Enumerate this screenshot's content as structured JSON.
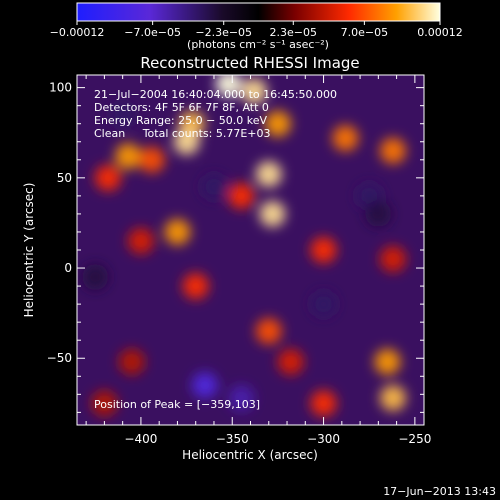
{
  "chart_data": {
    "type": "heatmap",
    "title": "Reconstructed RHESSI Image",
    "xlabel": "Heliocentric X (arcsec)",
    "ylabel": "Heliocentric Y (arcsec)",
    "xlim": [
      -435,
      -245
    ],
    "ylim": [
      -87,
      107
    ],
    "x_ticks": [
      -400,
      -350,
      -300,
      -250
    ],
    "x_tick_labels": [
      "−400",
      "−350",
      "−300",
      "−250"
    ],
    "y_ticks": [
      -50,
      0,
      50,
      100
    ],
    "y_tick_labels": [
      "−50",
      "0",
      "50",
      "100"
    ],
    "colorbar": {
      "range": [
        -0.00012,
        0.00012
      ],
      "tick_values": [
        -0.00012,
        -7e-05,
        -2.3e-05,
        2.3e-05,
        7e-05,
        0.00012
      ],
      "tick_labels": [
        "−0.00012",
        "−7.0e−05",
        "−2.3e−05",
        "2.3e−05",
        "7.0e−05",
        "0.00012"
      ],
      "units": "(photons cm⁻² s⁻¹ asec⁻²)"
    },
    "annotations": [
      "21−Jul−2004 16:40:04.000 to 16:45:50.000",
      "Detectors: 4F 5F 6F 7F 8F, Att 0",
      "Energy Range: 25.0 − 50.0 keV",
      "Clean     Total counts: 5.77E+03"
    ],
    "peak_label": "Position of Peak = [−359,103]",
    "peak": [
      -359,
      103
    ],
    "sources": [
      {
        "x": -352,
        "y": 102,
        "value": 0.00012
      },
      {
        "x": -338,
        "y": 98,
        "value": 0.00011
      },
      {
        "x": -372,
        "y": 80,
        "value": 0.0001
      },
      {
        "x": -375,
        "y": 70,
        "value": 0.00011
      },
      {
        "x": -325,
        "y": 80,
        "value": 9e-05
      },
      {
        "x": -330,
        "y": 52,
        "value": 0.00011
      },
      {
        "x": -328,
        "y": 30,
        "value": 0.00011
      },
      {
        "x": -407,
        "y": 62,
        "value": 9e-05
      },
      {
        "x": -394,
        "y": 60,
        "value": 7e-05
      },
      {
        "x": -418,
        "y": 50,
        "value": 6e-05
      },
      {
        "x": -380,
        "y": 20,
        "value": 9e-05
      },
      {
        "x": -345,
        "y": 40,
        "value": 6e-05
      },
      {
        "x": -400,
        "y": 15,
        "value": 5e-05
      },
      {
        "x": -288,
        "y": 72,
        "value": 8e-05
      },
      {
        "x": -262,
        "y": 65,
        "value": 8e-05
      },
      {
        "x": -300,
        "y": 10,
        "value": 6e-05
      },
      {
        "x": -262,
        "y": 5,
        "value": 5e-05
      },
      {
        "x": -370,
        "y": -10,
        "value": 6e-05
      },
      {
        "x": -330,
        "y": -35,
        "value": 7e-05
      },
      {
        "x": -318,
        "y": -52,
        "value": 5e-05
      },
      {
        "x": -405,
        "y": -52,
        "value": 4e-05
      },
      {
        "x": -265,
        "y": -52,
        "value": 9e-05
      },
      {
        "x": -262,
        "y": -72,
        "value": 0.0001
      },
      {
        "x": -300,
        "y": -75,
        "value": 6e-05
      },
      {
        "x": -420,
        "y": -75,
        "value": 4e-05
      },
      {
        "x": -365,
        "y": -65,
        "value": -8e-05
      },
      {
        "x": -345,
        "y": -72,
        "value": -6e-05
      },
      {
        "x": -410,
        "y": 85,
        "value": -4e-05
      },
      {
        "x": -360,
        "y": 45,
        "value": -4e-05
      },
      {
        "x": -275,
        "y": 40,
        "value": -4e-05
      },
      {
        "x": -300,
        "y": -20,
        "value": -4e-05
      },
      {
        "x": -425,
        "y": -5,
        "value": -3e-05
      },
      {
        "x": -270,
        "y": 30,
        "value": -3e-05
      }
    ]
  },
  "footer": {
    "timestamp": "17−Jun−2013 13:43"
  }
}
